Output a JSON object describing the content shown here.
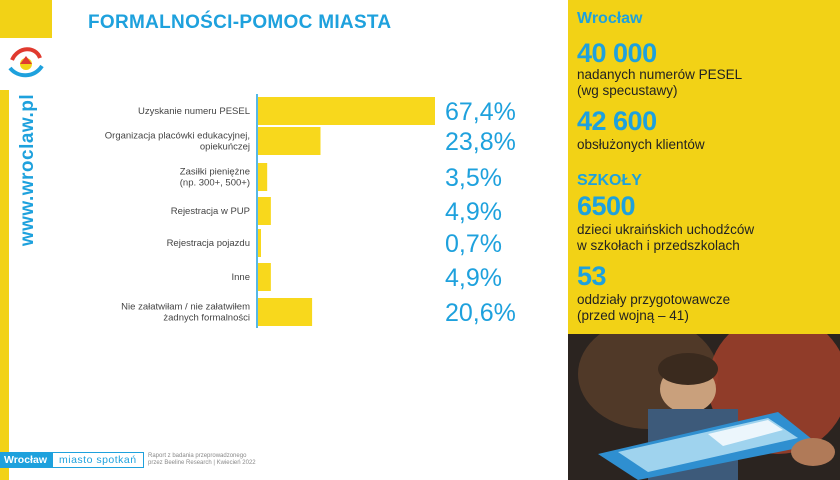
{
  "header": {
    "title": "FORMALNOŚCI-POMOC MIASTA"
  },
  "sidebar": {
    "vertical_url": "www.wroclaw.pl"
  },
  "chart_data": {
    "type": "bar",
    "orientation": "horizontal",
    "categories": [
      [
        "Uzyskanie numeru PESEL"
      ],
      [
        "Organizacja placówki edukacyjnej,",
        "opiekuńczej"
      ],
      [
        "Zasiłki pieniężne",
        "(np. 300+, 500+)"
      ],
      [
        "Rejestracja w PUP"
      ],
      [
        "Rejestracja pojazdu"
      ],
      [
        "Inne"
      ],
      [
        "Nie załatwiłam / nie załatwiłem",
        "żadnych formalności"
      ]
    ],
    "values": [
      67.4,
      23.8,
      3.5,
      4.9,
      0.7,
      4.9,
      20.6
    ],
    "value_labels": [
      "67,4%",
      "23,8%",
      "3,5%",
      "4,9%",
      "0,7%",
      "4,9%",
      "20,6%"
    ],
    "bar_color": "#f8d81c",
    "label_color": "#1ea1dd",
    "xlim": [
      0,
      67.4
    ]
  },
  "right_panel": {
    "city": "Wrocław",
    "pesel_count": "40 000",
    "pesel_text": [
      "nadanych numerów PESEL",
      "(wg specustawy)"
    ],
    "clients_count": "42 600",
    "clients_text": "obsłużonych klientów",
    "schools_heading": "SZKOŁY",
    "children_count": "6500",
    "children_text": [
      "dzieci ukraińskich uchodźców",
      "w szkołach i przedszkolach"
    ],
    "units_count": "53",
    "units_text": [
      "oddziały przygotowawcze",
      "(przed wojną – 41)"
    ]
  },
  "footer": {
    "brand": "Wrocław",
    "slogan": "miasto spotkań",
    "note": [
      "Raport z badania przeprowadzonego",
      "przez Beeline Research | Kwiecień 2022"
    ]
  },
  "colors": {
    "accent_blue": "#1ea1dd",
    "brand_yellow": "#f2d216"
  }
}
